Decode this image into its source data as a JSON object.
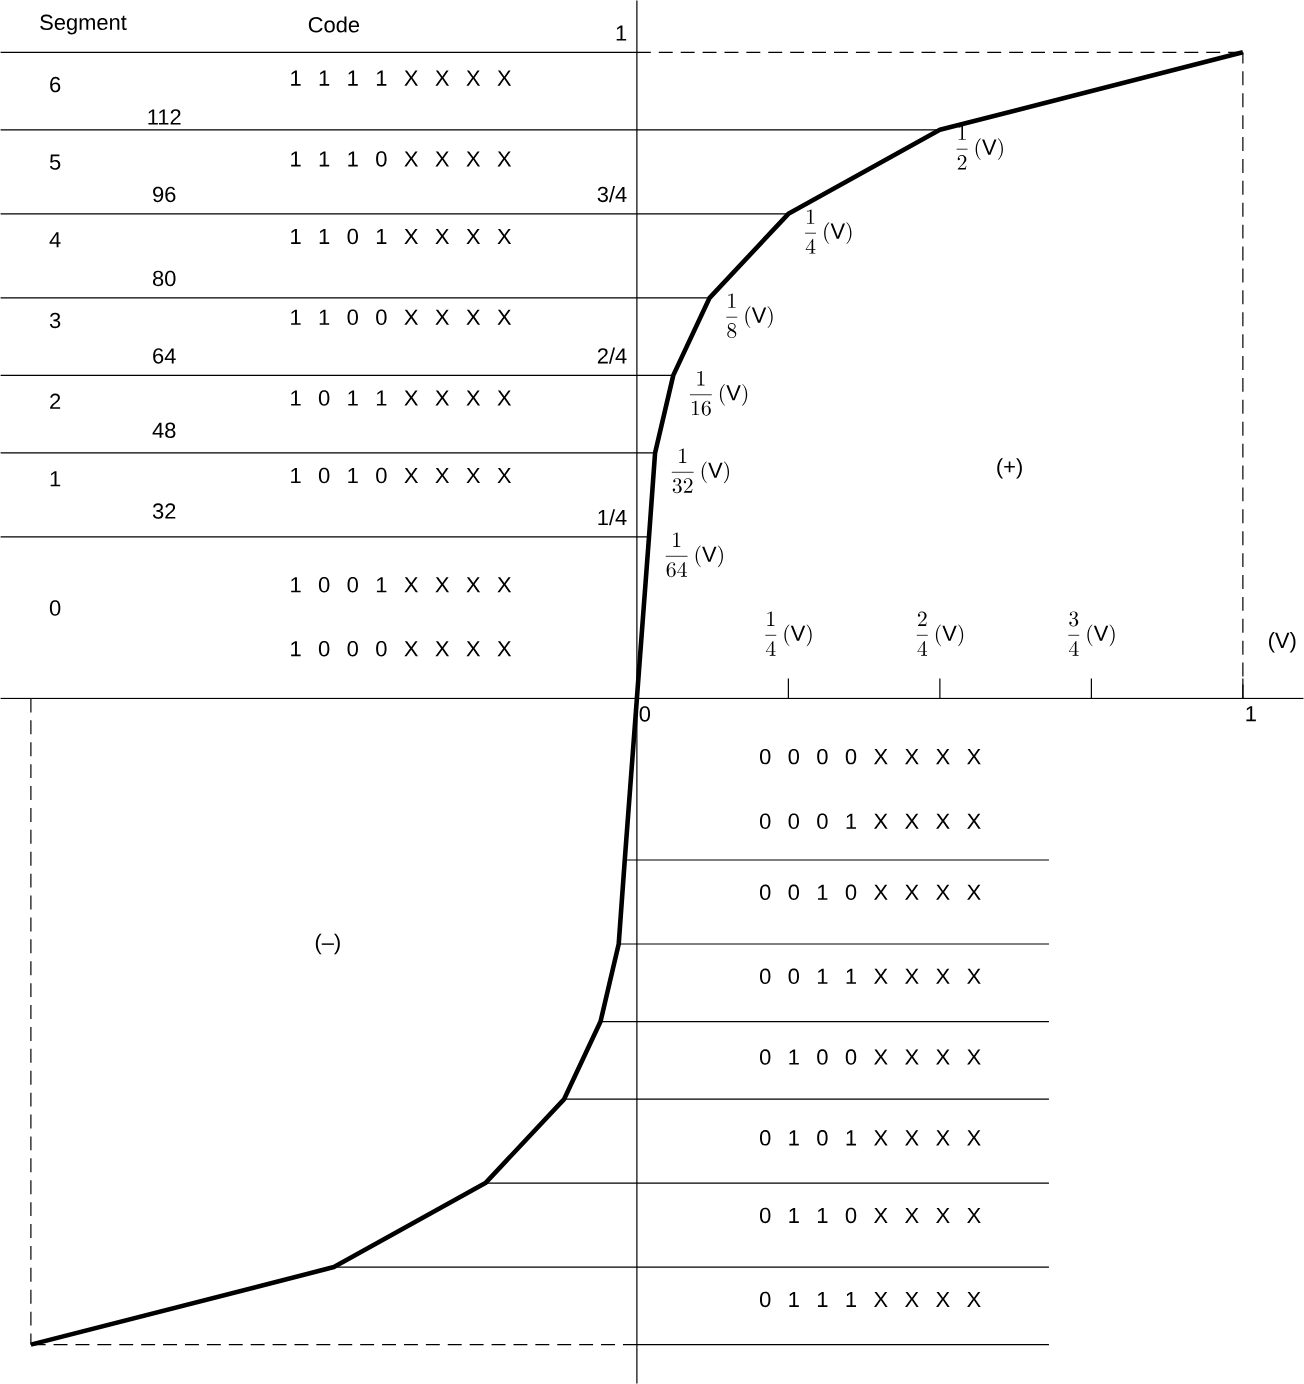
{
  "chart_data": {
    "type": "line",
    "series": [
      {
        "color": "#000000",
        "x": [
          -1,
          -0.5,
          -0.25,
          -0.12,
          -0.06,
          -0.03,
          -0.02,
          0,
          0.02,
          0.03,
          0.06,
          0.12,
          0.25,
          0.5,
          1
        ],
        "values": [
          -1,
          -0.88,
          -0.75,
          -0.62,
          -0.5,
          -0.38,
          -0.25,
          0,
          0.25,
          0.38,
          0.5,
          0.62,
          0.75,
          0.88,
          1
        ]
      }
    ],
    "xlim": [
      -1.05,
      1.1
    ],
    "ylim": [
      -1.06,
      1.08
    ],
    "xticks": [
      {
        "value": 0,
        "label": "0"
      },
      {
        "value": 0.25,
        "label": null
      },
      {
        "value": 0.5,
        "label": null
      },
      {
        "value": 0.75,
        "label": null
      },
      {
        "value": 1,
        "label": "1"
      }
    ],
    "yticks": [
      {
        "value": 0.25,
        "label": "1/4"
      },
      {
        "value": 0.5,
        "label": "2/4"
      },
      {
        "value": 0.75,
        "label": "3/4"
      },
      {
        "value": 1,
        "label": "1"
      }
    ],
    "ref_lines": [
      {
        "axis": "y",
        "value": 1
      },
      {
        "axis": "y",
        "value": 0.88
      },
      {
        "axis": "y",
        "value": 0.75
      },
      {
        "axis": "y",
        "value": 0.62
      },
      {
        "axis": "y",
        "value": 0.5
      },
      {
        "axis": "y",
        "value": 0.38
      },
      {
        "axis": "y",
        "value": 0.25
      },
      {
        "axis": "y",
        "value": -0.25
      },
      {
        "axis": "y",
        "value": -0.38
      },
      {
        "axis": "y",
        "value": -0.5
      },
      {
        "axis": "y",
        "value": -0.62
      },
      {
        "axis": "y",
        "value": -0.75
      },
      {
        "axis": "y",
        "value": -0.88
      },
      {
        "axis": "y",
        "value": -1
      },
      {
        "axis": "y",
        "value": 1,
        "line_style": "dashed"
      },
      {
        "axis": "y",
        "value": -1,
        "line_style": "dashed"
      },
      {
        "axis": "x",
        "value": 1,
        "line_style": "dashed"
      },
      {
        "axis": "x",
        "value": -1,
        "line_style": "dashed"
      }
    ],
    "annotations": [
      "Segment",
      "Code",
      "6",
      "5",
      "4",
      "3",
      "2",
      "1",
      "0",
      "112",
      "96",
      "80",
      "64",
      "48",
      "32",
      "1 1 1 1 X X X X",
      "1 1 1 0 X X X X",
      "1 1 0 1 X X X X",
      "1 1 0 0 X X X X",
      "1 0 1 1 X X X X",
      "1 0 1 0 X X X X",
      "1 0 0 1 X X X X",
      "1 0 0 0 X X X X",
      "0 0 0 0 X X X X",
      "0 0 0 1 X X X X",
      "0 0 1 0 X X X X",
      "0 0 1 1 X X X X",
      "0 1 0 0 X X X X",
      "0 1 0 1 X X X X",
      "0 1 1 0 X X X X",
      "0 1 1 1 X X X X",
      "(+)",
      "(–)",
      "\\frac{1}{4}\\,(\\mathrm{V})",
      "\\frac{2}{4}\\,(\\mathrm{V})",
      "\\frac{3}{4}\\,(\\mathrm{V})",
      "(V)",
      {
        "text": "\\frac{1}{2}\\,(\\mathrm{V})",
        "x": 0.5,
        "y": 0.88
      },
      {
        "text": "\\frac{1}{4}\\,(\\mathrm{V})",
        "x": 0.25,
        "y": 0.75
      },
      {
        "text": "\\frac{1}{8}\\,(\\mathrm{V})",
        "x": 0.12,
        "y": 0.62
      },
      {
        "text": "\\frac{1}{16}\\,(\\mathrm{V})",
        "x": 0.06,
        "y": 0.5
      },
      {
        "text": "\\frac{1}{32}\\,(\\mathrm{V})",
        "x": 0.03,
        "y": 0.38
      },
      {
        "text": "\\frac{1}{64}\\,(\\mathrm{V})",
        "x": 0.02,
        "y": 0.25
      }
    ]
  }
}
